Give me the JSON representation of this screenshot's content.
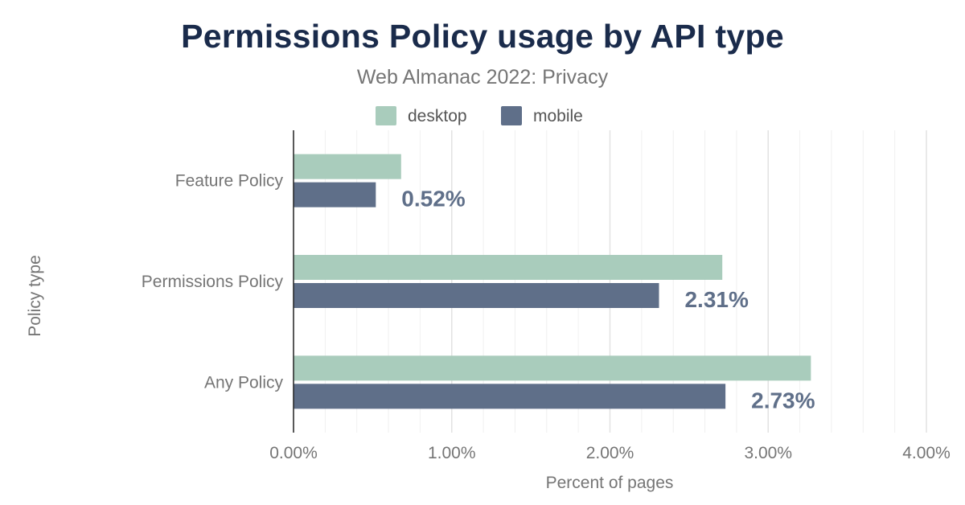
{
  "chart_data": {
    "type": "bar",
    "orientation": "horizontal",
    "title": "Permissions Policy usage by API type",
    "subtitle": "Web Almanac 2022: Privacy",
    "xlabel": "Percent of pages",
    "ylabel": "Policy type",
    "xlim": [
      0,
      4.0
    ],
    "x_ticks": [
      "0.00%",
      "1.00%",
      "2.00%",
      "3.00%",
      "4.00%"
    ],
    "x_tick_values": [
      0,
      1,
      2,
      3,
      4
    ],
    "grid": true,
    "legend_position": "top-center",
    "categories": [
      "Feature Policy",
      "Permissions Policy",
      "Any Policy"
    ],
    "series": [
      {
        "name": "desktop",
        "color": "#a9ccbc",
        "values": [
          0.68,
          2.71,
          3.27
        ]
      },
      {
        "name": "mobile",
        "color": "#5f6f89",
        "values": [
          0.52,
          2.31,
          2.73
        ]
      }
    ],
    "data_labels": [
      "0.52%",
      "2.31%",
      "2.73%"
    ]
  }
}
